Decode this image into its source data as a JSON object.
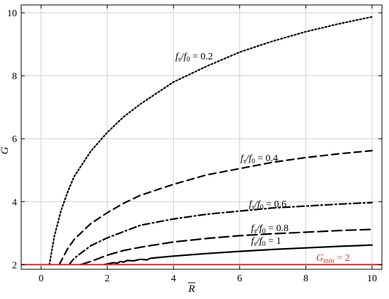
{
  "chart_data": {
    "type": "line",
    "title": "",
    "xlabel": "R̄",
    "ylabel": "G",
    "xlim": [
      -0.6,
      10.3
    ],
    "ylim": [
      1.85,
      10.25
    ],
    "xticks": [
      0,
      2,
      4,
      6,
      8,
      10
    ],
    "yticks": [
      2,
      4,
      6,
      8,
      10
    ],
    "grid": true,
    "series": [
      {
        "name": "fs/f0 = 0.2",
        "style": "dotted",
        "x": [
          0.25,
          0.4,
          0.6,
          0.8,
          1.0,
          1.5,
          2.0,
          2.5,
          3.0,
          4.0,
          5.0,
          6.0,
          7.0,
          8.0,
          9.0,
          10.0
        ],
        "values": [
          2.0,
          2.9,
          3.7,
          4.3,
          4.8,
          5.6,
          6.2,
          6.7,
          7.1,
          7.8,
          8.3,
          8.75,
          9.1,
          9.4,
          9.65,
          9.87
        ]
      },
      {
        "name": "fs/f0 = 0.4",
        "style": "dashed",
        "x": [
          0.55,
          0.8,
          1.0,
          1.5,
          2.0,
          2.5,
          3.0,
          4.0,
          5.0,
          6.0,
          7.0,
          8.0,
          9.0,
          10.0
        ],
        "values": [
          2.0,
          2.5,
          2.8,
          3.3,
          3.65,
          3.95,
          4.2,
          4.55,
          4.85,
          5.05,
          5.25,
          5.4,
          5.52,
          5.62
        ]
      },
      {
        "name": "fs/f0 = 0.6",
        "style": "dashdot",
        "x": [
          0.85,
          1.0,
          1.5,
          2.0,
          2.5,
          3.0,
          4.0,
          5.0,
          6.0,
          7.0,
          8.0,
          9.0,
          10.0
        ],
        "values": [
          2.0,
          2.2,
          2.6,
          2.85,
          3.05,
          3.25,
          3.45,
          3.6,
          3.7,
          3.8,
          3.86,
          3.92,
          3.97
        ]
      },
      {
        "name": "fs/f0 = 0.8",
        "style": "longdash",
        "x": [
          1.2,
          1.5,
          2.0,
          2.5,
          3.0,
          4.0,
          5.0,
          6.0,
          7.0,
          8.0,
          9.0,
          10.0
        ],
        "values": [
          2.0,
          2.1,
          2.3,
          2.45,
          2.55,
          2.72,
          2.83,
          2.92,
          2.98,
          3.03,
          3.08,
          3.12
        ]
      },
      {
        "name": "fs/f0 = 1",
        "style": "solid",
        "x": [
          1.9,
          2.0,
          2.2,
          2.3,
          2.4,
          2.5,
          2.6,
          2.8,
          3.0,
          3.2,
          3.3,
          3.5,
          4.0,
          5.0,
          6.0,
          7.0,
          8.0,
          9.0,
          10.0
        ],
        "values": [
          2.0,
          2.02,
          2.06,
          2.04,
          2.1,
          2.08,
          2.13,
          2.12,
          2.17,
          2.15,
          2.2,
          2.22,
          2.27,
          2.35,
          2.42,
          2.48,
          2.53,
          2.58,
          2.62
        ]
      }
    ],
    "reference_line": {
      "label": "Gmin = 2",
      "y": 2,
      "color": "#cc2a2a"
    }
  },
  "labels": {
    "ylabel": "G",
    "xlabel": "R",
    "gmin_main": "G",
    "gmin_sub": "min",
    "gmin_rest": " = 2",
    "series_labels": [
      {
        "a": "f",
        "s": "s",
        "b": "/f",
        "z": "0",
        "c": " = 0.2"
      },
      {
        "a": "f",
        "s": "s",
        "b": "/f",
        "z": "0",
        "c": " = 0.4"
      },
      {
        "a": "f",
        "s": "s",
        "b": "/f",
        "z": "0",
        "c": " = 0.6"
      },
      {
        "a": "f",
        "s": "s",
        "b": "/f",
        "z": "0",
        "c": " = 0.8"
      },
      {
        "a": "f",
        "s": "s",
        "b": "/f",
        "z": "0",
        "c": " = 1"
      }
    ],
    "xtick_labels": [
      "0",
      "2",
      "4",
      "6",
      "8",
      "10"
    ],
    "ytick_labels": [
      "2",
      "4",
      "6",
      "8",
      "10"
    ]
  }
}
